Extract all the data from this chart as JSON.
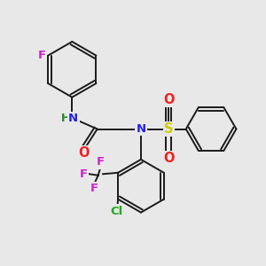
{
  "bg_color": "#e8e8e8",
  "bond_color": "#1a1a1a",
  "bond_width": 1.4,
  "atom_colors": {
    "F": "#cc22cc",
    "N": "#2222ee",
    "H": "#228822",
    "O": "#ee2222",
    "S": "#cccc00",
    "Cl": "#22aa22",
    "C": "#1a1a1a"
  },
  "font_size": 9.5,
  "figsize": [
    3.0,
    3.0
  ],
  "dpi": 100,
  "xlim": [
    0,
    10
  ],
  "ylim": [
    0,
    10
  ]
}
